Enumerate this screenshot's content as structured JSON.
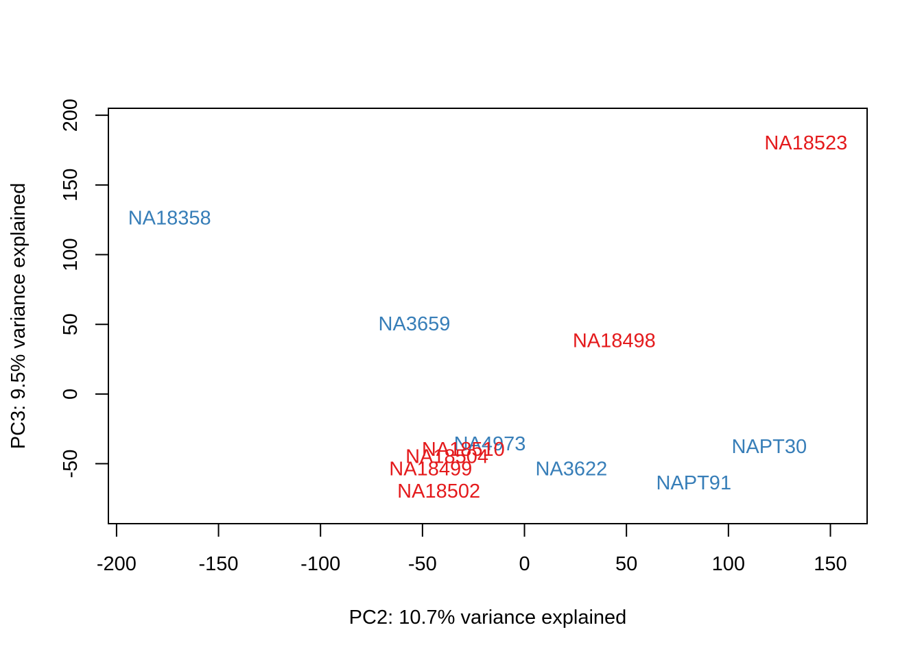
{
  "chart_data": {
    "type": "scatter",
    "title": "",
    "xlabel": "PC2: 10.7% variance explained",
    "ylabel": "PC3: 9.5% variance explained",
    "xlim": [
      -204,
      168
    ],
    "ylim": [
      -93,
      205
    ],
    "xticks": [
      -200,
      -150,
      -100,
      -50,
      0,
      50,
      100,
      150
    ],
    "yticks": [
      -50,
      0,
      50,
      100,
      150,
      200
    ],
    "grid": false,
    "colors": {
      "red": "#e41a1c",
      "blue": "#377eb8"
    },
    "points": [
      {
        "label": "NA18523",
        "x": 138,
        "y": 180,
        "color": "#e41a1c"
      },
      {
        "label": "NA18358",
        "x": -174,
        "y": 126,
        "color": "#377eb8"
      },
      {
        "label": "NA3659",
        "x": -54,
        "y": 50,
        "color": "#377eb8"
      },
      {
        "label": "NA18498",
        "x": 44,
        "y": 38,
        "color": "#e41a1c"
      },
      {
        "label": "NA4973",
        "x": -17,
        "y": -36,
        "color": "#377eb8"
      },
      {
        "label": "NA18510",
        "x": -30,
        "y": -40,
        "color": "#e41a1c"
      },
      {
        "label": "NAPT30",
        "x": 120,
        "y": -38,
        "color": "#377eb8"
      },
      {
        "label": "NA18504",
        "x": -38,
        "y": -45,
        "color": "#e41a1c"
      },
      {
        "label": "NA18499",
        "x": -46,
        "y": -54,
        "color": "#e41a1c"
      },
      {
        "label": "NA3622",
        "x": 23,
        "y": -54,
        "color": "#377eb8"
      },
      {
        "label": "NAPT91",
        "x": 83,
        "y": -64,
        "color": "#377eb8"
      },
      {
        "label": "NA18502",
        "x": -42,
        "y": -70,
        "color": "#e41a1c"
      }
    ]
  }
}
